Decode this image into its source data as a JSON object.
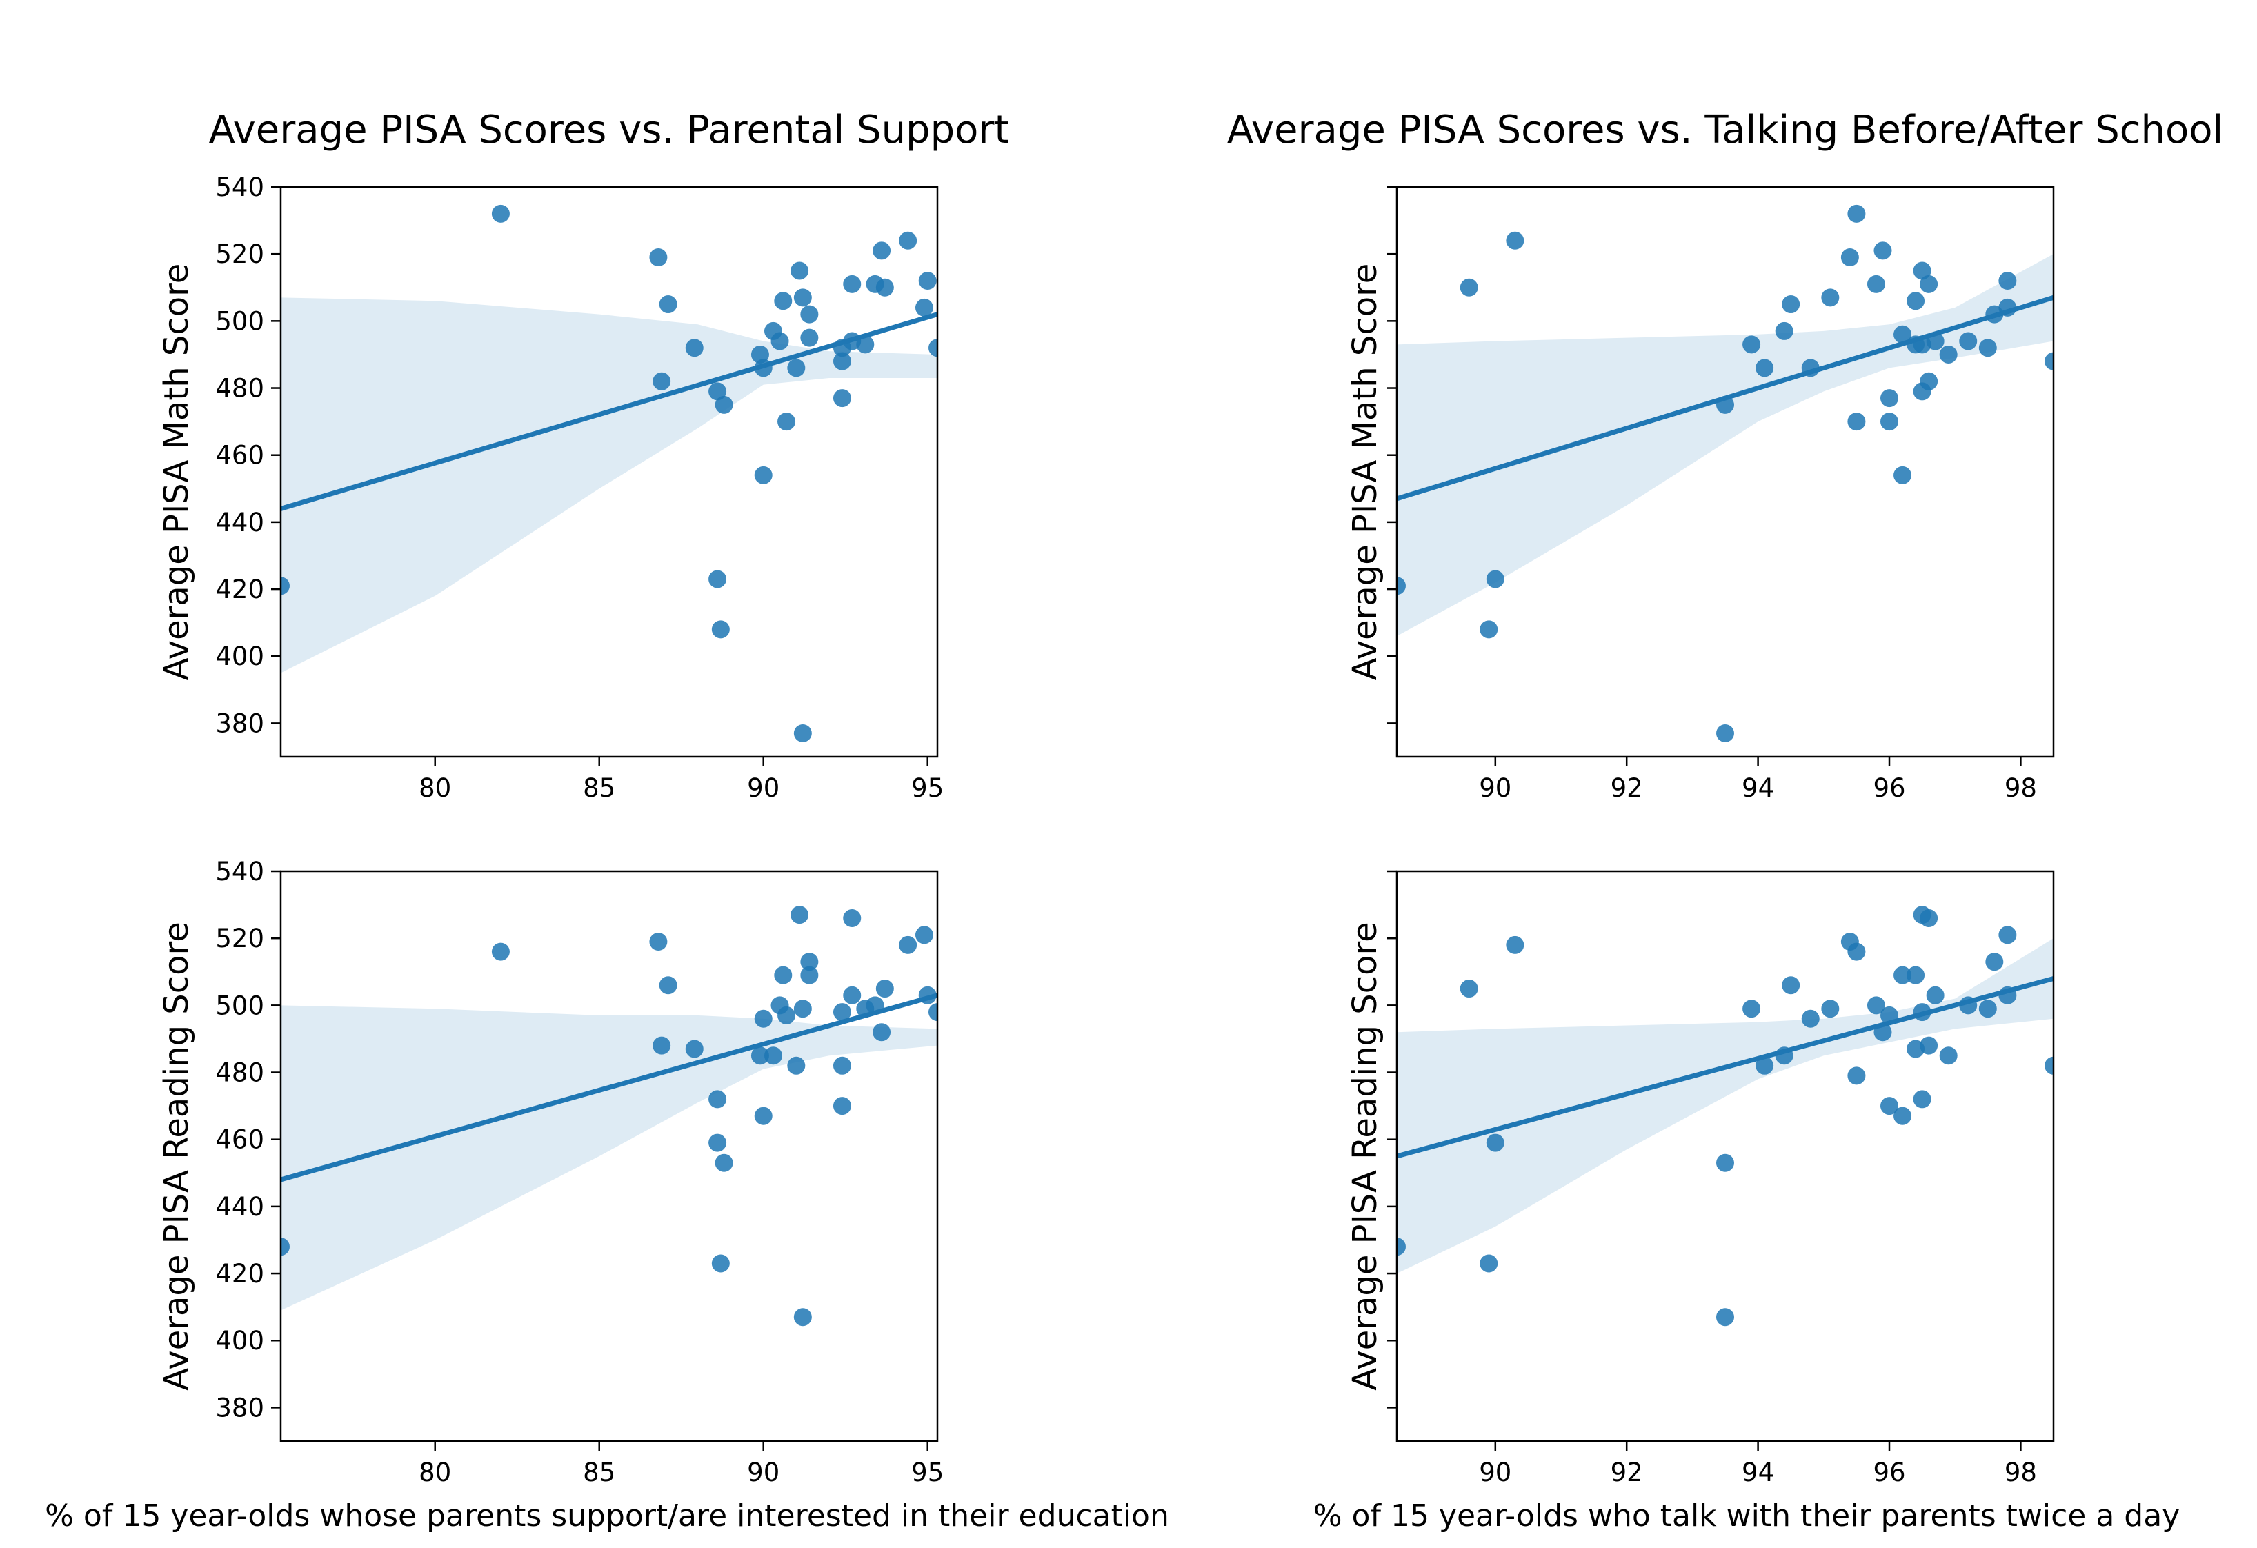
{
  "colors": {
    "points": "#1f77b4",
    "line": "#1f77b4",
    "band": "#1f77b4"
  },
  "xlabels": {
    "left": "% of 15 year-olds whose parents support/are interested in their education",
    "right": "% of 15 year-olds who talk with their parents twice a day"
  },
  "chart_data": [
    {
      "type": "scatter",
      "title": "Average PISA Scores vs. Parental Support",
      "xlabel": "",
      "ylabel": "Average PISA Math Score",
      "xlim": [
        75.3,
        95.3
      ],
      "ylim": [
        370,
        540
      ],
      "xticks": [
        80,
        85,
        90,
        95
      ],
      "yticks": [
        380,
        400,
        420,
        440,
        460,
        480,
        500,
        520,
        540
      ],
      "show_xtick_labels": true,
      "show_ytick_labels": true,
      "regression": {
        "x": [
          75.3,
          95.3
        ],
        "y": [
          444,
          502
        ]
      },
      "ci_upper": [
        [
          75.3,
          507
        ],
        [
          80,
          506
        ],
        [
          85,
          502
        ],
        [
          88,
          499
        ],
        [
          90,
          494
        ],
        [
          92,
          491
        ],
        [
          95.3,
          490
        ]
      ],
      "ci_lower": [
        [
          75.3,
          395
        ],
        [
          80,
          418
        ],
        [
          85,
          450
        ],
        [
          88,
          468
        ],
        [
          90,
          481
        ],
        [
          92,
          483
        ],
        [
          95.3,
          483
        ]
      ],
      "points": [
        {
          "x": 82.0,
          "y": 532
        },
        {
          "x": 86.8,
          "y": 519
        },
        {
          "x": 87.1,
          "y": 505
        },
        {
          "x": 86.9,
          "y": 482
        },
        {
          "x": 87.9,
          "y": 492
        },
        {
          "x": 88.6,
          "y": 479
        },
        {
          "x": 88.8,
          "y": 475
        },
        {
          "x": 88.6,
          "y": 423
        },
        {
          "x": 88.7,
          "y": 408
        },
        {
          "x": 89.9,
          "y": 490
        },
        {
          "x": 90.0,
          "y": 486
        },
        {
          "x": 90.3,
          "y": 497
        },
        {
          "x": 90.5,
          "y": 494
        },
        {
          "x": 90.6,
          "y": 506
        },
        {
          "x": 90.7,
          "y": 470
        },
        {
          "x": 90.0,
          "y": 454
        },
        {
          "x": 91.0,
          "y": 486
        },
        {
          "x": 91.1,
          "y": 515
        },
        {
          "x": 91.2,
          "y": 507
        },
        {
          "x": 91.4,
          "y": 502
        },
        {
          "x": 91.4,
          "y": 495
        },
        {
          "x": 91.2,
          "y": 377
        },
        {
          "x": 92.4,
          "y": 492
        },
        {
          "x": 92.4,
          "y": 488
        },
        {
          "x": 92.4,
          "y": 477
        },
        {
          "x": 92.7,
          "y": 511
        },
        {
          "x": 92.7,
          "y": 494
        },
        {
          "x": 93.1,
          "y": 493
        },
        {
          "x": 93.4,
          "y": 511
        },
        {
          "x": 93.6,
          "y": 521
        },
        {
          "x": 93.7,
          "y": 510
        },
        {
          "x": 94.4,
          "y": 524
        },
        {
          "x": 95.0,
          "y": 512
        },
        {
          "x": 94.9,
          "y": 504
        },
        {
          "x": 75.3,
          "y": 421
        },
        {
          "x": 95.3,
          "y": 492
        }
      ]
    },
    {
      "type": "scatter",
      "title": "Average PISA Scores vs. Talking Before/After School",
      "xlabel": "",
      "ylabel": "Average PISA Math Score",
      "xlim": [
        88.5,
        98.5
      ],
      "ylim": [
        370,
        540
      ],
      "xticks": [
        90,
        92,
        94,
        96,
        98
      ],
      "yticks": [
        380,
        400,
        420,
        440,
        460,
        480,
        500,
        520,
        540
      ],
      "show_xtick_labels": true,
      "show_ytick_labels": false,
      "regression": {
        "x": [
          88.5,
          98.5
        ],
        "y": [
          447,
          507
        ]
      },
      "ci_upper": [
        [
          88.5,
          493
        ],
        [
          90,
          494
        ],
        [
          92,
          495
        ],
        [
          94,
          496
        ],
        [
          95,
          497
        ],
        [
          96,
          499
        ],
        [
          97,
          504
        ],
        [
          98.5,
          520
        ]
      ],
      "ci_lower": [
        [
          88.5,
          406
        ],
        [
          90,
          422
        ],
        [
          92,
          445
        ],
        [
          94,
          470
        ],
        [
          95,
          479
        ],
        [
          96,
          486
        ],
        [
          97,
          489
        ],
        [
          98.5,
          494
        ]
      ],
      "points": [
        {
          "x": 89.6,
          "y": 510
        },
        {
          "x": 90.3,
          "y": 524
        },
        {
          "x": 90.0,
          "y": 423
        },
        {
          "x": 89.9,
          "y": 408
        },
        {
          "x": 88.5,
          "y": 421
        },
        {
          "x": 93.5,
          "y": 475
        },
        {
          "x": 93.5,
          "y": 377
        },
        {
          "x": 93.9,
          "y": 493
        },
        {
          "x": 94.1,
          "y": 486
        },
        {
          "x": 94.4,
          "y": 497
        },
        {
          "x": 94.5,
          "y": 505
        },
        {
          "x": 94.8,
          "y": 486
        },
        {
          "x": 95.1,
          "y": 507
        },
        {
          "x": 95.4,
          "y": 519
        },
        {
          "x": 95.5,
          "y": 532
        },
        {
          "x": 95.5,
          "y": 470
        },
        {
          "x": 95.8,
          "y": 511
        },
        {
          "x": 95.9,
          "y": 521
        },
        {
          "x": 96.0,
          "y": 477
        },
        {
          "x": 96.0,
          "y": 470
        },
        {
          "x": 96.2,
          "y": 496
        },
        {
          "x": 96.2,
          "y": 454
        },
        {
          "x": 96.4,
          "y": 506
        },
        {
          "x": 96.4,
          "y": 493
        },
        {
          "x": 96.5,
          "y": 515
        },
        {
          "x": 96.5,
          "y": 493
        },
        {
          "x": 96.5,
          "y": 479
        },
        {
          "x": 96.6,
          "y": 511
        },
        {
          "x": 96.6,
          "y": 482
        },
        {
          "x": 96.7,
          "y": 494
        },
        {
          "x": 96.9,
          "y": 490
        },
        {
          "x": 97.2,
          "y": 494
        },
        {
          "x": 97.5,
          "y": 492
        },
        {
          "x": 97.6,
          "y": 502
        },
        {
          "x": 97.8,
          "y": 512
        },
        {
          "x": 97.8,
          "y": 504
        },
        {
          "x": 98.5,
          "y": 488
        }
      ]
    },
    {
      "type": "scatter",
      "title": "",
      "xlabel": "",
      "ylabel": "Average PISA Reading Score",
      "xlim": [
        75.3,
        95.3
      ],
      "ylim": [
        370,
        540
      ],
      "xticks": [
        80,
        85,
        90,
        95
      ],
      "yticks": [
        380,
        400,
        420,
        440,
        460,
        480,
        500,
        520,
        540
      ],
      "show_xtick_labels": true,
      "show_ytick_labels": true,
      "regression": {
        "x": [
          75.3,
          95.3
        ],
        "y": [
          448,
          503
        ]
      },
      "ci_upper": [
        [
          75.3,
          500
        ],
        [
          80,
          499
        ],
        [
          85,
          497
        ],
        [
          88,
          497
        ],
        [
          90,
          496
        ],
        [
          92,
          494
        ],
        [
          95.3,
          493
        ]
      ],
      "ci_lower": [
        [
          75.3,
          409
        ],
        [
          80,
          430
        ],
        [
          85,
          455
        ],
        [
          88,
          471
        ],
        [
          90,
          481
        ],
        [
          92,
          485
        ],
        [
          95.3,
          488
        ]
      ],
      "points": [
        {
          "x": 82.0,
          "y": 516
        },
        {
          "x": 86.8,
          "y": 519
        },
        {
          "x": 87.1,
          "y": 506
        },
        {
          "x": 86.9,
          "y": 488
        },
        {
          "x": 87.9,
          "y": 487
        },
        {
          "x": 88.6,
          "y": 472
        },
        {
          "x": 88.6,
          "y": 459
        },
        {
          "x": 88.8,
          "y": 453
        },
        {
          "x": 88.7,
          "y": 423
        },
        {
          "x": 90.0,
          "y": 496
        },
        {
          "x": 89.9,
          "y": 485
        },
        {
          "x": 90.3,
          "y": 485
        },
        {
          "x": 90.5,
          "y": 500
        },
        {
          "x": 90.6,
          "y": 509
        },
        {
          "x": 90.7,
          "y": 497
        },
        {
          "x": 90.0,
          "y": 467
        },
        {
          "x": 91.0,
          "y": 482
        },
        {
          "x": 91.1,
          "y": 527
        },
        {
          "x": 91.2,
          "y": 499
        },
        {
          "x": 91.4,
          "y": 513
        },
        {
          "x": 91.4,
          "y": 509
        },
        {
          "x": 91.2,
          "y": 407
        },
        {
          "x": 92.4,
          "y": 498
        },
        {
          "x": 92.4,
          "y": 482
        },
        {
          "x": 92.4,
          "y": 470
        },
        {
          "x": 92.7,
          "y": 526
        },
        {
          "x": 92.7,
          "y": 503
        },
        {
          "x": 93.1,
          "y": 499
        },
        {
          "x": 93.4,
          "y": 500
        },
        {
          "x": 93.6,
          "y": 492
        },
        {
          "x": 93.7,
          "y": 505
        },
        {
          "x": 94.4,
          "y": 518
        },
        {
          "x": 94.9,
          "y": 521
        },
        {
          "x": 95.0,
          "y": 503
        },
        {
          "x": 75.3,
          "y": 428
        },
        {
          "x": 95.3,
          "y": 498
        }
      ]
    },
    {
      "type": "scatter",
      "title": "",
      "xlabel": "",
      "ylabel": "Average PISA Reading Score",
      "xlim": [
        88.5,
        98.5
      ],
      "ylim": [
        370,
        540
      ],
      "xticks": [
        90,
        92,
        94,
        96,
        98
      ],
      "yticks": [
        380,
        400,
        420,
        440,
        460,
        480,
        500,
        520,
        540
      ],
      "show_xtick_labels": true,
      "show_ytick_labels": false,
      "regression": {
        "x": [
          88.5,
          98.5
        ],
        "y": [
          455,
          508
        ]
      },
      "ci_upper": [
        [
          88.5,
          492
        ],
        [
          90,
          493
        ],
        [
          92,
          494
        ],
        [
          94,
          495
        ],
        [
          95,
          496
        ],
        [
          96,
          498
        ],
        [
          97,
          502
        ],
        [
          98.5,
          520
        ]
      ],
      "ci_lower": [
        [
          88.5,
          420
        ],
        [
          90,
          434
        ],
        [
          92,
          457
        ],
        [
          94,
          478
        ],
        [
          95,
          485
        ],
        [
          96,
          489
        ],
        [
          97,
          493
        ],
        [
          98.5,
          496
        ]
      ],
      "points": [
        {
          "x": 89.6,
          "y": 505
        },
        {
          "x": 90.3,
          "y": 518
        },
        {
          "x": 90.0,
          "y": 459
        },
        {
          "x": 89.9,
          "y": 423
        },
        {
          "x": 88.5,
          "y": 428
        },
        {
          "x": 93.5,
          "y": 453
        },
        {
          "x": 93.5,
          "y": 407
        },
        {
          "x": 93.9,
          "y": 499
        },
        {
          "x": 94.1,
          "y": 482
        },
        {
          "x": 94.4,
          "y": 485
        },
        {
          "x": 94.5,
          "y": 506
        },
        {
          "x": 94.8,
          "y": 496
        },
        {
          "x": 95.1,
          "y": 499
        },
        {
          "x": 95.4,
          "y": 519
        },
        {
          "x": 95.5,
          "y": 516
        },
        {
          "x": 95.5,
          "y": 479
        },
        {
          "x": 95.8,
          "y": 500
        },
        {
          "x": 95.9,
          "y": 492
        },
        {
          "x": 96.0,
          "y": 497
        },
        {
          "x": 96.0,
          "y": 470
        },
        {
          "x": 96.2,
          "y": 509
        },
        {
          "x": 96.2,
          "y": 467
        },
        {
          "x": 96.4,
          "y": 509
        },
        {
          "x": 96.4,
          "y": 487
        },
        {
          "x": 96.5,
          "y": 527
        },
        {
          "x": 96.5,
          "y": 498
        },
        {
          "x": 96.5,
          "y": 472
        },
        {
          "x": 96.6,
          "y": 526
        },
        {
          "x": 96.6,
          "y": 488
        },
        {
          "x": 96.7,
          "y": 503
        },
        {
          "x": 96.9,
          "y": 485
        },
        {
          "x": 97.2,
          "y": 500
        },
        {
          "x": 97.5,
          "y": 499
        },
        {
          "x": 97.6,
          "y": 513
        },
        {
          "x": 97.8,
          "y": 521
        },
        {
          "x": 97.8,
          "y": 503
        },
        {
          "x": 98.5,
          "y": 482
        }
      ]
    }
  ]
}
